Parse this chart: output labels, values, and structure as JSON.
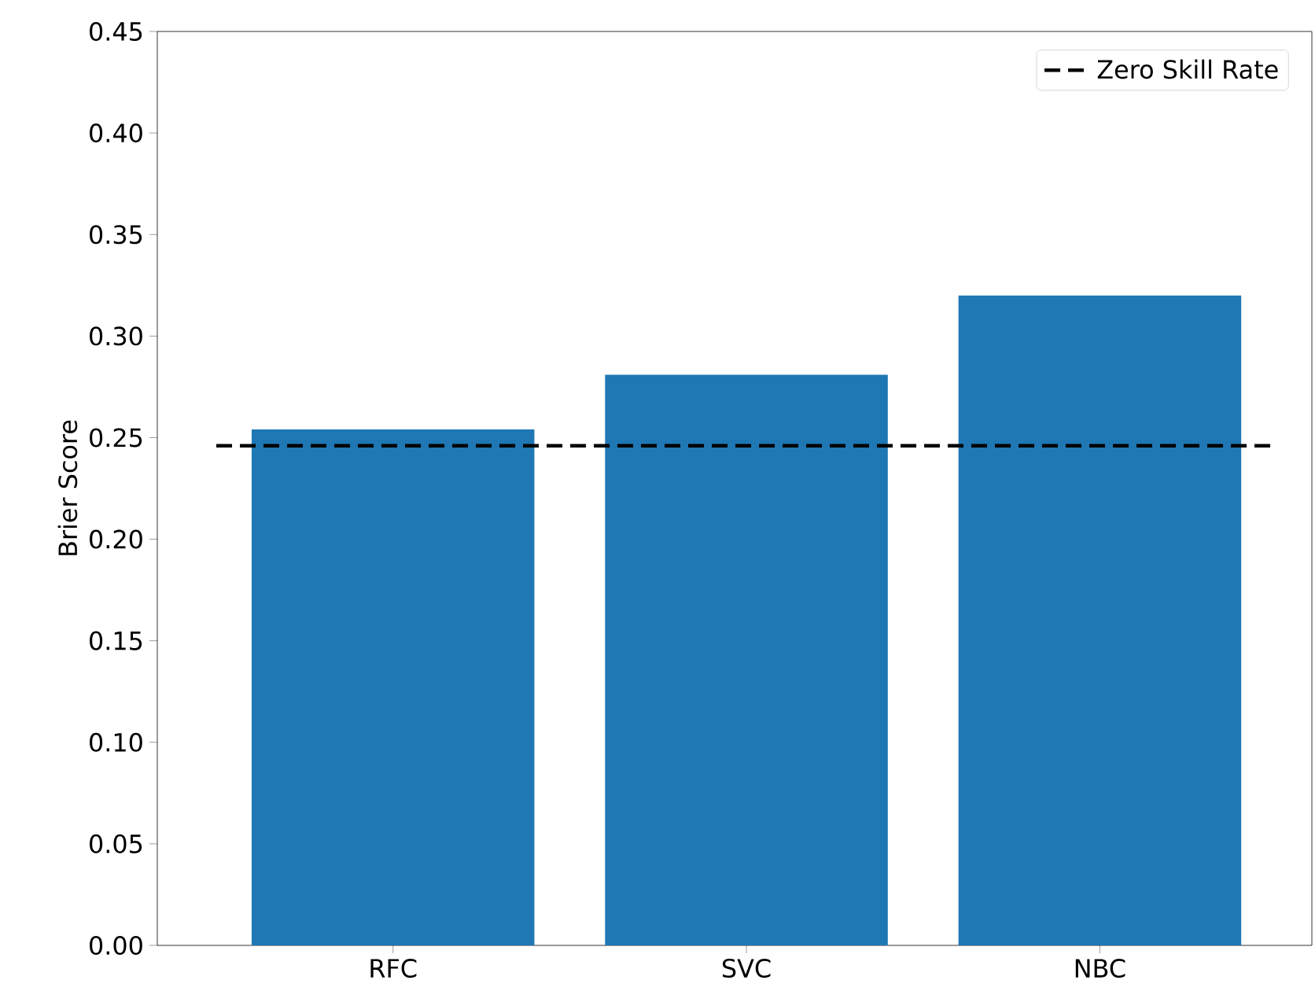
{
  "chart_data": {
    "type": "bar",
    "ylabel": "Brier Score",
    "categories": [
      "RFC",
      "SVC",
      "NBC"
    ],
    "values": [
      0.254,
      0.281,
      0.32
    ],
    "color": "#1f77b4",
    "ylim": [
      0,
      0.45
    ],
    "yticks": [
      {
        "value": 0,
        "label": "0.00"
      },
      {
        "value": 0.05,
        "label": "0.05"
      },
      {
        "value": 0.1,
        "label": "0.10"
      },
      {
        "value": 0.15,
        "label": "0.15"
      },
      {
        "value": 0.2,
        "label": "0.20"
      },
      {
        "value": 0.25,
        "label": "0.25"
      },
      {
        "value": 0.3,
        "label": "0.30"
      },
      {
        "value": 0.35,
        "label": "0.35"
      },
      {
        "value": 0.4,
        "label": "0.40"
      },
      {
        "value": 0.45,
        "label": "0.45"
      }
    ],
    "ref_lines": [
      {
        "axis": "y",
        "value": 0.246,
        "label": "Zero Skill Rate",
        "color": "#000000",
        "line_style": "dashed"
      }
    ],
    "legend": "top right"
  }
}
